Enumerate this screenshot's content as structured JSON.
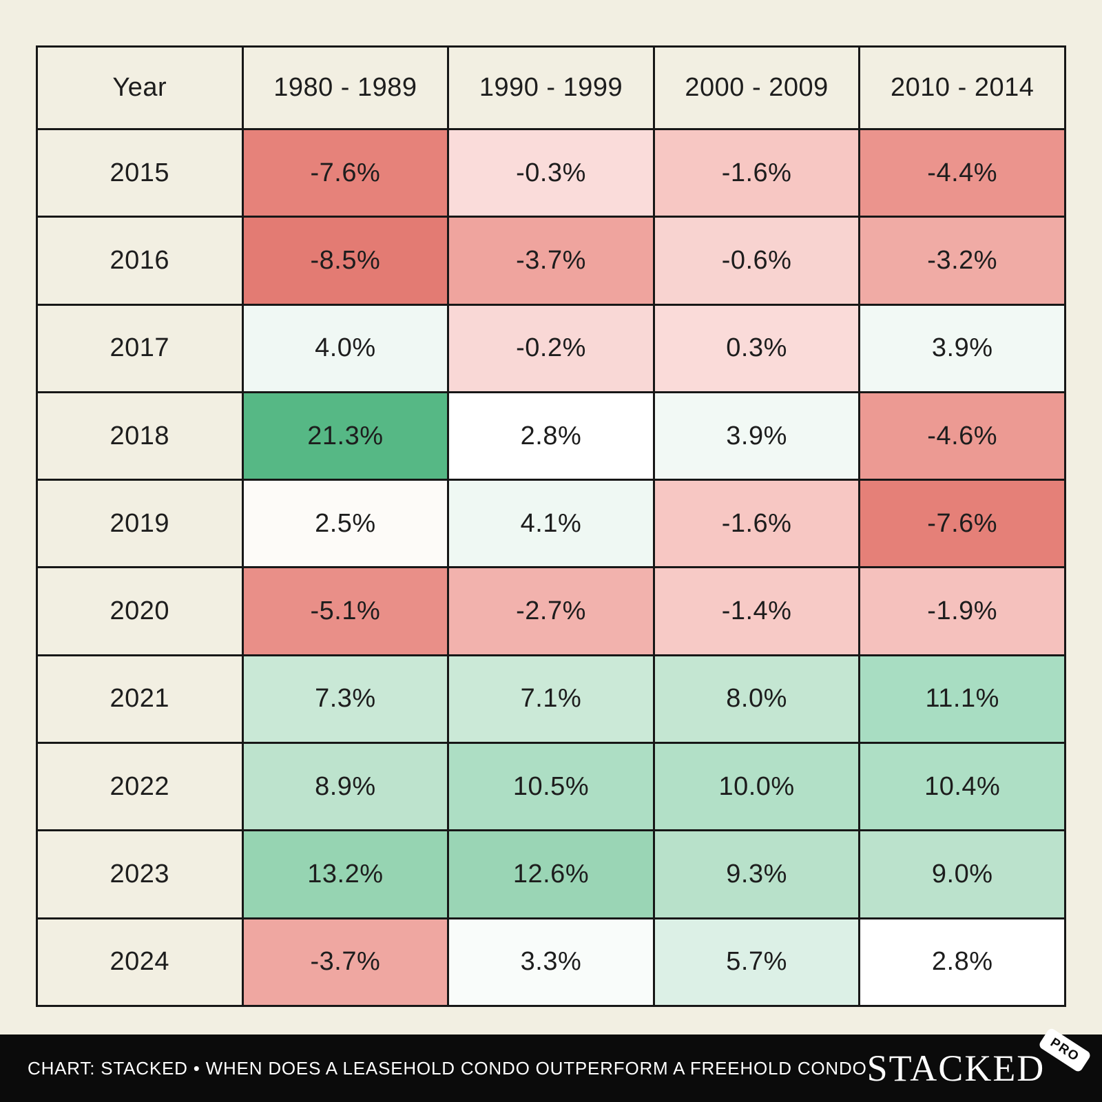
{
  "table": {
    "columns": [
      "Year",
      "1980 - 1989",
      "1990 - 1999",
      "2000 - 2009",
      "2010 - 2014"
    ],
    "rows": [
      {
        "year": "2015",
        "cells": [
          {
            "value": "-7.6%",
            "bg": "#e6827a"
          },
          {
            "value": "-0.3%",
            "bg": "#fadcda"
          },
          {
            "value": "-1.6%",
            "bg": "#f7c7c3"
          },
          {
            "value": "-4.4%",
            "bg": "#eb948d"
          }
        ]
      },
      {
        "year": "2016",
        "cells": [
          {
            "value": "-8.5%",
            "bg": "#e37b73"
          },
          {
            "value": "-3.7%",
            "bg": "#efa49e"
          },
          {
            "value": "-0.6%",
            "bg": "#f8d3d0"
          },
          {
            "value": "-3.2%",
            "bg": "#f0aba5"
          }
        ]
      },
      {
        "year": "2017",
        "cells": [
          {
            "value": "4.0%",
            "bg": "#f0f8f4"
          },
          {
            "value": "-0.2%",
            "bg": "#f9d8d6"
          },
          {
            "value": "0.3%",
            "bg": "#fadbd9"
          },
          {
            "value": "3.9%",
            "bg": "#f2f9f5"
          }
        ]
      },
      {
        "year": "2018",
        "cells": [
          {
            "value": "21.3%",
            "bg": "#56b885"
          },
          {
            "value": "2.8%",
            "bg": "#ffffff"
          },
          {
            "value": "3.9%",
            "bg": "#f2f9f5"
          },
          {
            "value": "-4.6%",
            "bg": "#ec9a93"
          }
        ]
      },
      {
        "year": "2019",
        "cells": [
          {
            "value": "2.5%",
            "bg": "#fdfbf8"
          },
          {
            "value": "4.1%",
            "bg": "#eff8f3"
          },
          {
            "value": "-1.6%",
            "bg": "#f7c7c3"
          },
          {
            "value": "-7.6%",
            "bg": "#e58078"
          }
        ]
      },
      {
        "year": "2020",
        "cells": [
          {
            "value": "-5.1%",
            "bg": "#e98f88"
          },
          {
            "value": "-2.7%",
            "bg": "#f2b2ad"
          },
          {
            "value": "-1.4%",
            "bg": "#f7cac6"
          },
          {
            "value": "-1.9%",
            "bg": "#f5c1bd"
          }
        ]
      },
      {
        "year": "2021",
        "cells": [
          {
            "value": "7.3%",
            "bg": "#c9e8d6"
          },
          {
            "value": "7.1%",
            "bg": "#cbe9d7"
          },
          {
            "value": "8.0%",
            "bg": "#c4e6d2"
          },
          {
            "value": "11.1%",
            "bg": "#a8ddc2"
          }
        ]
      },
      {
        "year": "2022",
        "cells": [
          {
            "value": "8.9%",
            "bg": "#bde3cd"
          },
          {
            "value": "10.5%",
            "bg": "#addec4"
          },
          {
            "value": "10.0%",
            "bg": "#b2e0c7"
          },
          {
            "value": "10.4%",
            "bg": "#aedfc5"
          }
        ]
      },
      {
        "year": "2023",
        "cells": [
          {
            "value": "13.2%",
            "bg": "#96d4b2"
          },
          {
            "value": "12.6%",
            "bg": "#9ad5b5"
          },
          {
            "value": "9.3%",
            "bg": "#b8e1ca"
          },
          {
            "value": "9.0%",
            "bg": "#bbe2cc"
          }
        ]
      },
      {
        "year": "2024",
        "cells": [
          {
            "value": "-3.7%",
            "bg": "#efa7a1"
          },
          {
            "value": "3.3%",
            "bg": "#f9fcfa"
          },
          {
            "value": "5.7%",
            "bg": "#dcf0e6"
          },
          {
            "value": "2.8%",
            "bg": "#ffffff"
          }
        ]
      }
    ]
  },
  "footer": {
    "caption": "CHART: STACKED • WHEN DOES A LEASEHOLD CONDO OUTPERFORM A FREEHOLD CONDO",
    "brand": "STACKED",
    "badge": "PRO"
  },
  "colors": {
    "page_background": "#f2efe2",
    "table_border": "#171717",
    "footer_background": "#0b0b0b",
    "footer_text": "#ffffff",
    "max_green": "#56b885",
    "max_red": "#e37b73",
    "midpoint_white": "#ffffff"
  },
  "chart_data": {
    "type": "heatmap",
    "title": "",
    "x_categories": [
      "1980 - 1989",
      "1990 - 1999",
      "2000 - 2009",
      "2010 - 2014"
    ],
    "y_categories": [
      "2015",
      "2016",
      "2017",
      "2018",
      "2019",
      "2020",
      "2021",
      "2022",
      "2023",
      "2024"
    ],
    "values_percent": [
      [
        -7.6,
        -0.3,
        -1.6,
        -4.4
      ],
      [
        -8.5,
        -3.7,
        -0.6,
        -3.2
      ],
      [
        4.0,
        -0.2,
        0.3,
        3.9
      ],
      [
        21.3,
        2.8,
        3.9,
        -4.6
      ],
      [
        2.5,
        4.1,
        -1.6,
        -7.6
      ],
      [
        -5.1,
        -2.7,
        -1.4,
        -1.9
      ],
      [
        7.3,
        7.1,
        8.0,
        11.1
      ],
      [
        8.9,
        10.5,
        10.0,
        10.4
      ],
      [
        13.2,
        12.6,
        9.3,
        9.0
      ],
      [
        -3.7,
        3.3,
        5.7,
        2.8
      ]
    ],
    "legend_position": "none",
    "grid": "on",
    "color_scale": {
      "negative_end": "#e37b73",
      "white_midpoint_at_percent": 2.8,
      "positive_end": "#56b885"
    },
    "caption": "CHART: STACKED • WHEN DOES A LEASEHOLD CONDO OUTPERFORM A FREEHOLD CONDO"
  }
}
